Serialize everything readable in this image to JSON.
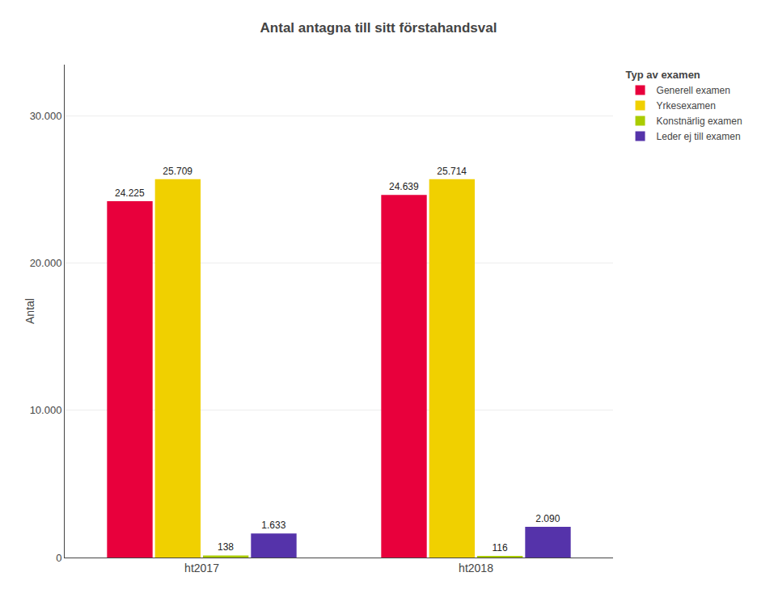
{
  "chart_data": {
    "type": "bar",
    "title": "Antal antagna till sitt förstahandsval",
    "ylabel": "Antal",
    "categories": [
      "ht2017",
      "ht2018"
    ],
    "series": [
      {
        "name": "Generell examen",
        "color": "#E8003C",
        "values": [
          24225,
          24639
        ],
        "value_labels": [
          "24.225",
          "24.639"
        ]
      },
      {
        "name": "Yrkesexamen",
        "color": "#F0D000",
        "values": [
          25709,
          25714
        ],
        "value_labels": [
          "25.709",
          "25.714"
        ]
      },
      {
        "name": "Konstnärlig examen",
        "color": "#AACC00",
        "values": [
          138,
          116
        ],
        "value_labels": [
          "138",
          "116"
        ]
      },
      {
        "name": "Leder ej till examen",
        "color": "#5533AA",
        "values": [
          1633,
          2090
        ],
        "value_labels": [
          "1.633",
          "2.090"
        ]
      }
    ],
    "legend_title": "Typ av examen",
    "legend": "upper right",
    "ylim": [
      0,
      33500
    ],
    "yticks": [
      0,
      {
        "value": 10000,
        "label": "10.000"
      },
      {
        "value": 20000,
        "label": "20.000"
      },
      {
        "value": 30000,
        "label": "30.000"
      }
    ],
    "grid": true,
    "data_labels": true
  }
}
